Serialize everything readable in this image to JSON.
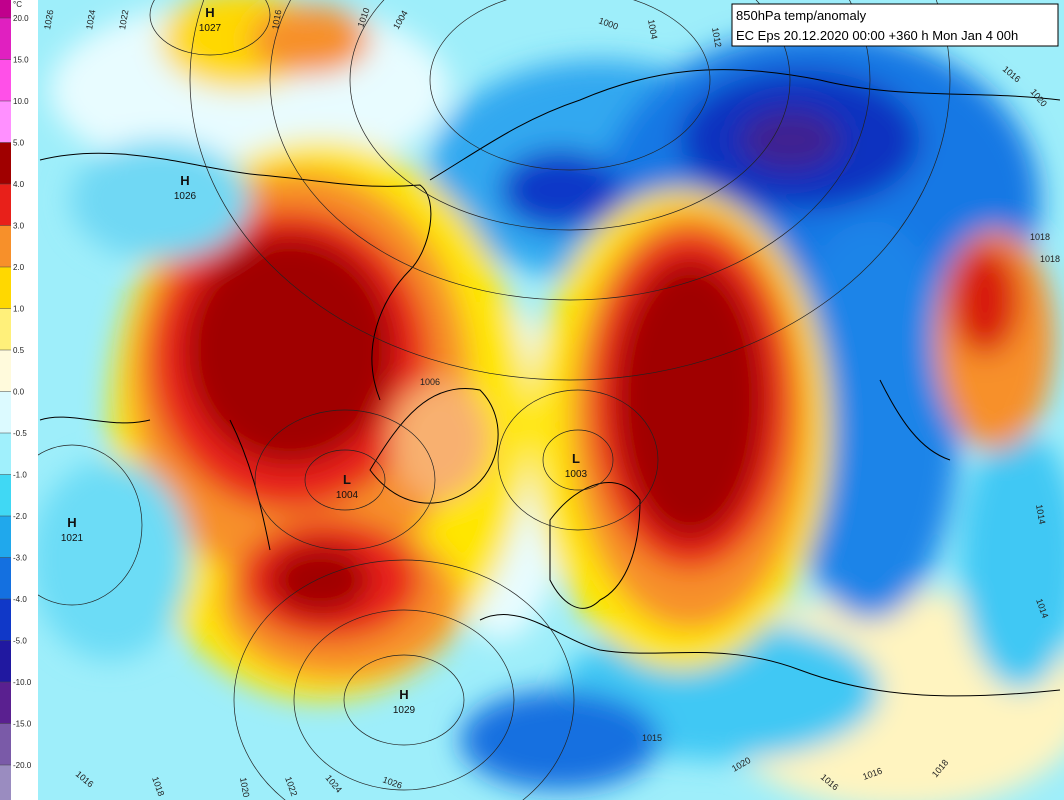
{
  "title_box": {
    "line1": "850hPa temp/anomaly",
    "line2": "EC Eps 20.12.2020 00:00 +360 h Mon Jan 4 00h"
  },
  "legend": {
    "unit": "°C",
    "labels": [
      "20.0",
      "15.0",
      "10.0",
      "5.0",
      "4.0",
      "3.0",
      "2.0",
      "1.0",
      "0.5",
      "0.0",
      "-0.5",
      "-1.0",
      "-2.0",
      "-3.0",
      "-4.0",
      "-5.0",
      "-10.0",
      "-15.0",
      "-20.0"
    ],
    "colors": [
      "#c0008c",
      "#e020c0",
      "#ff50e8",
      "#ff90ff",
      "#a00000",
      "#e8201a",
      "#f7902a",
      "#ffd800",
      "#fff07a",
      "#fffadc",
      "#dcfaff",
      "#a0f0fc",
      "#40d8f4",
      "#20a8ec",
      "#1470e0",
      "#1038c8",
      "#2018a0",
      "#5a2090",
      "#7a5aa8",
      "#9a8cc0"
    ]
  },
  "pressure_centers": [
    {
      "kind": "H",
      "value": "1027"
    },
    {
      "kind": "H",
      "value": "1026"
    },
    {
      "kind": "H",
      "value": "1021"
    },
    {
      "kind": "L",
      "value": "1004"
    },
    {
      "kind": "L",
      "value": "1003"
    },
    {
      "kind": "H",
      "value": "1029"
    }
  ],
  "isobar_labels": [
    "1006",
    "1026",
    "1024",
    "1022",
    "1016",
    "1010",
    "1004",
    "1000",
    "1004",
    "1012",
    "1016",
    "1020",
    "1018",
    "1014",
    "1014",
    "1016",
    "1018",
    "1020",
    "1022",
    "1024",
    "1026",
    "1015",
    "1020",
    "1016",
    "1016",
    "1018",
    "1018"
  ]
}
